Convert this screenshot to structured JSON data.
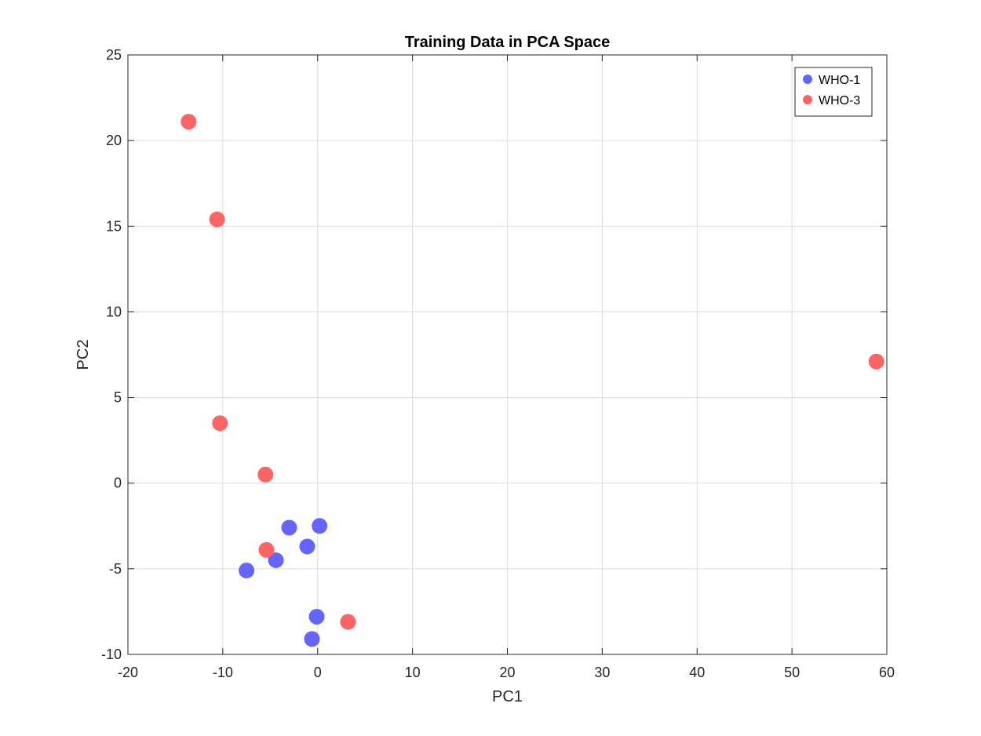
{
  "chart_data": {
    "type": "scatter",
    "title": "Training Data in PCA Space",
    "xlabel": "PC1",
    "ylabel": "PC2",
    "xlim": [
      -20,
      60
    ],
    "ylim": [
      -10,
      25
    ],
    "xticks": [
      -20,
      -10,
      0,
      10,
      20,
      30,
      40,
      50,
      60
    ],
    "yticks": [
      -10,
      -5,
      0,
      5,
      10,
      15,
      20,
      25
    ],
    "grid": true,
    "legend_position": "top-right",
    "series": [
      {
        "name": "WHO-1",
        "color": "#6464ff",
        "points": [
          {
            "x": -7.5,
            "y": -5.1
          },
          {
            "x": -4.4,
            "y": -4.5
          },
          {
            "x": -3.0,
            "y": -2.6
          },
          {
            "x": -1.1,
            "y": -3.7
          },
          {
            "x": 0.2,
            "y": -2.5
          },
          {
            "x": -0.1,
            "y": -7.8
          },
          {
            "x": -0.6,
            "y": -9.1
          }
        ]
      },
      {
        "name": "WHO-3",
        "color": "#ff6464",
        "points": [
          {
            "x": -13.6,
            "y": 21.1
          },
          {
            "x": -10.6,
            "y": 15.4
          },
          {
            "x": -10.3,
            "y": 3.5
          },
          {
            "x": -5.5,
            "y": 0.5
          },
          {
            "x": -5.4,
            "y": -3.9
          },
          {
            "x": 3.2,
            "y": -8.1
          },
          {
            "x": 58.9,
            "y": 7.1
          }
        ]
      }
    ]
  }
}
